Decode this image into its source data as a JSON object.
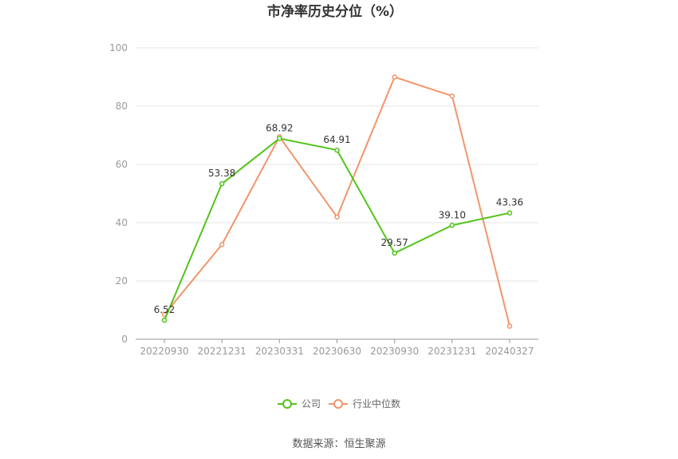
{
  "chart_data": {
    "type": "line",
    "title": "市净率历史分位（%）",
    "categories": [
      "20220930",
      "20221231",
      "20230331",
      "20230630",
      "20230930",
      "20231231",
      "20240327"
    ],
    "series": [
      {
        "name": "公司",
        "color": "#52c41a",
        "values": [
          6.52,
          53.38,
          68.92,
          64.91,
          29.57,
          39.1,
          43.36
        ],
        "labels": [
          "6.52",
          "53.38",
          "68.92",
          "64.91",
          "29.57",
          "39.10",
          "43.36"
        ]
      },
      {
        "name": "行业中位数",
        "color": "#f0956a",
        "values": [
          8.5,
          32.5,
          69.5,
          42.0,
          90.0,
          83.5,
          4.5
        ]
      }
    ],
    "yticks": [
      "0",
      "20",
      "40",
      "60",
      "80",
      "100"
    ],
    "ylim": [
      0,
      100
    ],
    "grid": true,
    "legend_position": "bottom"
  },
  "source_text": "数据来源：恒生聚源"
}
